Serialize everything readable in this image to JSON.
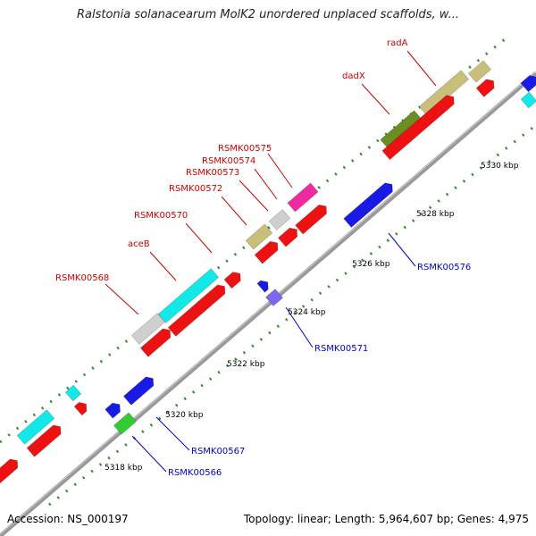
{
  "title": "Ralstonia solanacearum MolK2 unordered unplaced scaffolds, w...",
  "footer": {
    "accession": "Accession: NS_000197",
    "summary": "Topology: linear; Length: 5,964,607 bp; Genes: 4,975"
  },
  "colors": {
    "axis": "#999999",
    "forward_gene": "#ee1111",
    "reverse_gene": "#1a1ae6",
    "cyan": "#11e8e8",
    "gray": "#cfcfcf",
    "khaki": "#c8bf7a",
    "olive": "#6b8e23",
    "magenta": "#ee2a9e",
    "green": "#33cc33",
    "slate": "#7b68ee",
    "tick": "#2e8b2e"
  },
  "ticks": [
    "5318 kbp",
    "5320 kbp",
    "5322 kbp",
    "5324 kbp",
    "5326 kbp",
    "5328 kbp",
    "5330 kbp"
  ],
  "upper_labels": [
    "RSMK00568",
    "aceB",
    "RSMK00570",
    "RSMK00572",
    "RSMK00573",
    "RSMK00574",
    "RSMK00575",
    "dadX",
    "radA"
  ],
  "lower_labels": [
    "RSMK00566",
    "RSMK00567",
    "RSMK00571",
    "RSMK00576"
  ]
}
